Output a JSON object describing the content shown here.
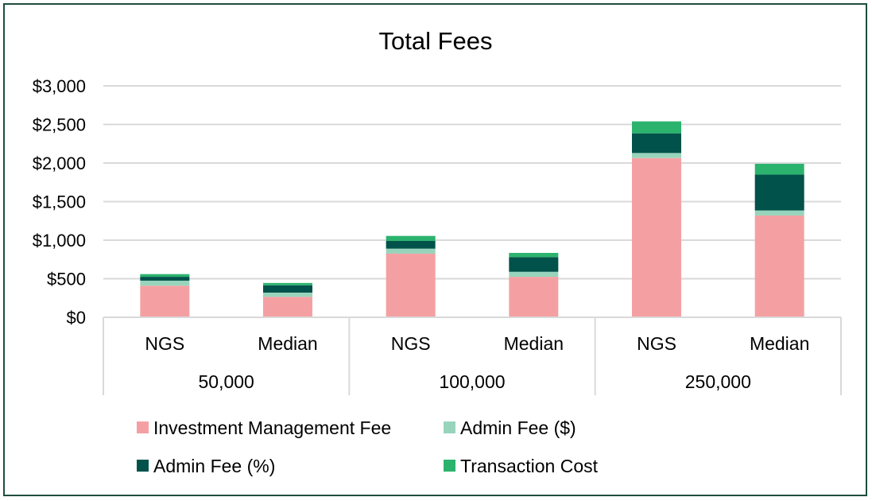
{
  "chart_data": {
    "type": "bar",
    "stacked": true,
    "title": "Total Fees",
    "xlabel": "",
    "ylabel": "",
    "ylim": [
      0,
      3000
    ],
    "yticks": [
      0,
      500,
      1000,
      1500,
      2000,
      2500,
      3000
    ],
    "ytick_labels": [
      "$0",
      "$500",
      "$1,000",
      "$1,500",
      "$2,000",
      "$2,500",
      "$3,000"
    ],
    "grid": true,
    "legend_position": "bottom",
    "groups": [
      {
        "label": "50,000",
        "categories": [
          "NGS",
          "Median"
        ]
      },
      {
        "label": "100,000",
        "categories": [
          "NGS",
          "Median"
        ]
      },
      {
        "label": "250,000",
        "categories": [
          "NGS",
          "Median"
        ]
      }
    ],
    "categories": [
      "NGS",
      "Median",
      "NGS",
      "Median",
      "NGS",
      "Median"
    ],
    "series": [
      {
        "name": "Investment Management Fee",
        "color": "#F4A0A2",
        "values": [
          410,
          265,
          825,
          525,
          2065,
          1320
        ]
      },
      {
        "name": "Admin Fee ($)",
        "color": "#98D4BC",
        "values": [
          65,
          55,
          65,
          65,
          65,
          65
        ]
      },
      {
        "name": "Admin Fee (%)",
        "color": "#00524A",
        "values": [
          50,
          95,
          100,
          190,
          255,
          465
        ]
      },
      {
        "name": "Transaction Cost",
        "color": "#2BB36E",
        "values": [
          35,
          30,
          65,
          55,
          155,
          140
        ]
      }
    ]
  }
}
